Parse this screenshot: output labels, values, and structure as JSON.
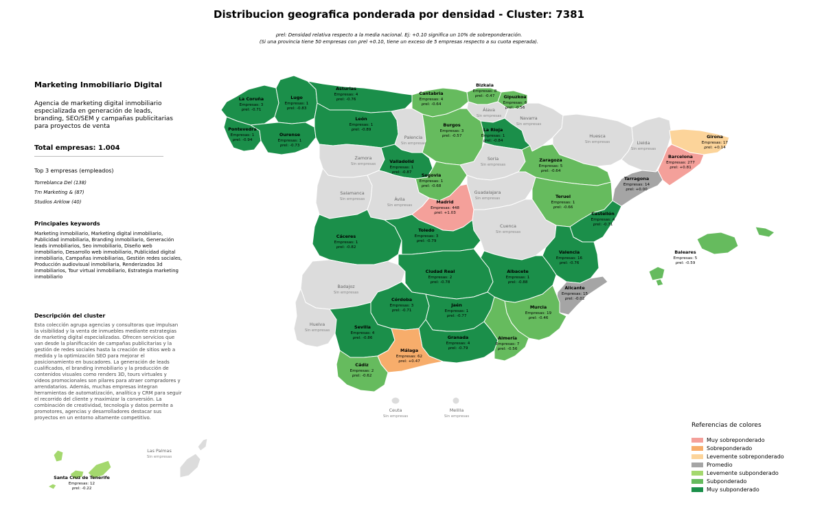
{
  "title": "Distribucion geografica ponderada por densidad - Cluster: 7381",
  "note_line1": "ρrel: Densidad relativa respecto a la media nacional. Ej: +0.10 significa un 10% de sobreponderación.",
  "note_line2": "(Si una provincia tiene 50 empresas con ρrel +0.10, tiene un exceso de 5 empresas respecto a su cuota esperada).",
  "panel": {
    "cluster_name": "Marketing Inmobiliario Digital",
    "tagline": "Agencia de marketing digital inmobiliario especializada en generación de leads, branding, SEO/SEM y campañas publicitarias para proyectos de venta",
    "total_label": "Total empresas: 1.004",
    "top_title": "Top 3 empresas (empleados)",
    "top_companies": [
      "Torreblanca Del (138)",
      "Tm Marketing & (87)",
      "Studios Arklow (40)"
    ],
    "keywords_title": "Principales keywords",
    "keywords_text": "Marketing inmobiliario, Marketing digital inmobiliario, Publicidad inmobiliaria, Branding inmobiliario, Generación leads inmobiliarios, Seo inmobiliario, Diseño web inmobiliario, Desarrollo web inmobiliario, Publicidad digital inmobiliaria, Campañas inmobiliarias, Gestión redes sociales, Producción audiovisual inmobiliaria, Renderizados 3d inmobiliarios, Tour virtual inmobiliario, Estrategia marketing inmobiliario",
    "description_title": "Descripción del cluster",
    "description_text": "Esta colección agrupa agencias y consultoras que impulsan la visibilidad y la venta de inmuebles mediante estrategias de marketing digital especializadas. Ofrecen servicios que van desde la planificación de campañas publicitarias y la gestión de redes sociales hasta la creación de sitios web a medida y la optimización SEO para mejorar el posicionamiento en buscadores. La generación de leads cualificados, el branding inmobiliario y la producción de contenidos visuales como renders 3D, tours virtuales y videos promocionales son pilares para atraer compradores y arrendatarios. Además, muchas empresas integran herramientas de automatización, analítica y CRM para seguir el recorrido del cliente y maximizar la conversión. La combinación de creatividad, tecnología y datos permite a promotores, agencias y desarrolladores destacar sus proyectos en un entorno altamente competitivo."
  },
  "colors": {
    "muy_sobre": "#f4a09a",
    "sobre": "#f7ad6b",
    "levemente_sobre": "#fcd49a",
    "promedio": "#a5a5a5",
    "levemente_sub": "#a4d86e",
    "sub": "#66bb5e",
    "muy_sub": "#1b8f4a",
    "sin": "#dcdcdc"
  },
  "legend": {
    "title": "Referencias de colores",
    "items": [
      {
        "label": "Muy sobreponderado",
        "cls": "muy_sobre"
      },
      {
        "label": "Sobreponderado",
        "cls": "sobre"
      },
      {
        "label": "Levemente sobreponderado",
        "cls": "levemente_sobre"
      },
      {
        "label": "Promedio",
        "cls": "promedio"
      },
      {
        "label": "Levemente subponderado",
        "cls": "levemente_sub"
      },
      {
        "label": "Subponderado",
        "cls": "sub"
      },
      {
        "label": "Muy subponderado",
        "cls": "muy_sub"
      }
    ]
  },
  "provinces": [
    {
      "name": "La Coruña",
      "empresas": 3,
      "rho": "-0.71",
      "cls": "muy_sub"
    },
    {
      "name": "Lugo",
      "empresas": 1,
      "rho": "-0.83",
      "cls": "muy_sub"
    },
    {
      "name": "Asturias",
      "empresas": 4,
      "rho": "-0.76",
      "cls": "muy_sub"
    },
    {
      "name": "Cantabria",
      "empresas": 4,
      "rho": "-0.64",
      "cls": "sub"
    },
    {
      "name": "Bizkaia",
      "empresas": 8,
      "rho": "-0.47",
      "cls": "sub"
    },
    {
      "name": "Gipuzkoa",
      "empresas": 6,
      "rho": "-0.56",
      "cls": "sub"
    },
    {
      "name": "Álava",
      "empresas": null,
      "rho": null,
      "cls": "sin"
    },
    {
      "name": "Navarra",
      "empresas": null,
      "rho": null,
      "cls": "sin"
    },
    {
      "name": "Pontevedra",
      "empresas": 1,
      "rho": "-0.94",
      "cls": "muy_sub"
    },
    {
      "name": "Ourense",
      "empresas": 1,
      "rho": "-0.73",
      "cls": "muy_sub"
    },
    {
      "name": "León",
      "empresas": 1,
      "rho": "-0.89",
      "cls": "muy_sub"
    },
    {
      "name": "Palencia",
      "empresas": null,
      "rho": null,
      "cls": "sin"
    },
    {
      "name": "Burgos",
      "empresas": 3,
      "rho": "-0.57",
      "cls": "sub"
    },
    {
      "name": "La Rioja",
      "empresas": 1,
      "rho": "-0.84",
      "cls": "muy_sub"
    },
    {
      "name": "Huesca",
      "empresas": null,
      "rho": null,
      "cls": "sin"
    },
    {
      "name": "Lleida",
      "empresas": null,
      "rho": null,
      "cls": "sin"
    },
    {
      "name": "Girona",
      "empresas": 17,
      "rho": "+0.14",
      "cls": "levemente_sobre"
    },
    {
      "name": "Barcelona",
      "empresas": 277,
      "rho": "+0.81",
      "cls": "muy_sobre"
    },
    {
      "name": "Zamora",
      "empresas": null,
      "rho": null,
      "cls": "sin"
    },
    {
      "name": "Valladolid",
      "empresas": 1,
      "rho": "-0.87",
      "cls": "muy_sub"
    },
    {
      "name": "Soria",
      "empresas": null,
      "rho": null,
      "cls": "sin"
    },
    {
      "name": "Zaragoza",
      "empresas": 5,
      "rho": "-0.64",
      "cls": "sub"
    },
    {
      "name": "Tarragona",
      "empresas": 14,
      "rho": "+0.00",
      "cls": "promedio"
    },
    {
      "name": "Salamanca",
      "empresas": null,
      "rho": null,
      "cls": "sin"
    },
    {
      "name": "Segovia",
      "empresas": 1,
      "rho": "-0.68",
      "cls": "sub"
    },
    {
      "name": "Ávila",
      "empresas": null,
      "rho": null,
      "cls": "sin"
    },
    {
      "name": "Madrid",
      "empresas": 448,
      "rho": "+1.03",
      "cls": "muy_sobre"
    },
    {
      "name": "Guadalajara",
      "empresas": null,
      "rho": null,
      "cls": "sin"
    },
    {
      "name": "Teruel",
      "empresas": 1,
      "rho": "-0.66",
      "cls": "sub"
    },
    {
      "name": "Castellón",
      "empresas": 4,
      "rho": "-0.71",
      "cls": "muy_sub"
    },
    {
      "name": "Cáceres",
      "empresas": 1,
      "rho": "-0.82",
      "cls": "muy_sub"
    },
    {
      "name": "Toledo",
      "empresas": 3,
      "rho": "-0.79",
      "cls": "muy_sub"
    },
    {
      "name": "Cuenca",
      "empresas": null,
      "rho": null,
      "cls": "sin"
    },
    {
      "name": "Valencia",
      "empresas": 16,
      "rho": "-0.76",
      "cls": "muy_sub"
    },
    {
      "name": "Baleares",
      "empresas": 5,
      "rho": "-0.59",
      "cls": "sub"
    },
    {
      "name": "Badajoz",
      "empresas": null,
      "rho": null,
      "cls": "sin"
    },
    {
      "name": "Ciudad Real",
      "empresas": 2,
      "rho": "-0.78",
      "cls": "muy_sub"
    },
    {
      "name": "Albacete",
      "empresas": 1,
      "rho": "-0.88",
      "cls": "muy_sub"
    },
    {
      "name": "Alicante",
      "empresas": 15,
      "rho": "-0.02",
      "cls": "promedio"
    },
    {
      "name": "Córdoba",
      "empresas": 3,
      "rho": "-0.71",
      "cls": "muy_sub"
    },
    {
      "name": "Jaén",
      "empresas": 1,
      "rho": "-0.77",
      "cls": "muy_sub"
    },
    {
      "name": "Murcia",
      "empresas": 19,
      "rho": "-0.46",
      "cls": "sub"
    },
    {
      "name": "Huelva",
      "empresas": null,
      "rho": null,
      "cls": "sin"
    },
    {
      "name": "Sevilla",
      "empresas": 4,
      "rho": "-0.86",
      "cls": "muy_sub"
    },
    {
      "name": "Granada",
      "empresas": 4,
      "rho": "-0.79",
      "cls": "muy_sub"
    },
    {
      "name": "Almería",
      "empresas": 7,
      "rho": "-0.56",
      "cls": "sub"
    },
    {
      "name": "Málaga",
      "empresas": 62,
      "rho": "+0.47",
      "cls": "sobre"
    },
    {
      "name": "Cádiz",
      "empresas": 2,
      "rho": "-0.62",
      "cls": "sub"
    },
    {
      "name": "Ceuta",
      "empresas": null,
      "rho": null,
      "cls": "sin"
    },
    {
      "name": "Melilla",
      "empresas": null,
      "rho": null,
      "cls": "sin"
    },
    {
      "name": "Las Palmas",
      "empresas": null,
      "rho": null,
      "cls": "sin"
    },
    {
      "name": "Santa Cruz de Tenerife",
      "empresas": 12,
      "rho": "-0.22",
      "cls": "levemente_sub"
    }
  ],
  "labels": {
    "empresas_prefix": "Empresas: ",
    "rho_prefix": "ρrel: ",
    "sin_empresas": "Sin empresas"
  }
}
